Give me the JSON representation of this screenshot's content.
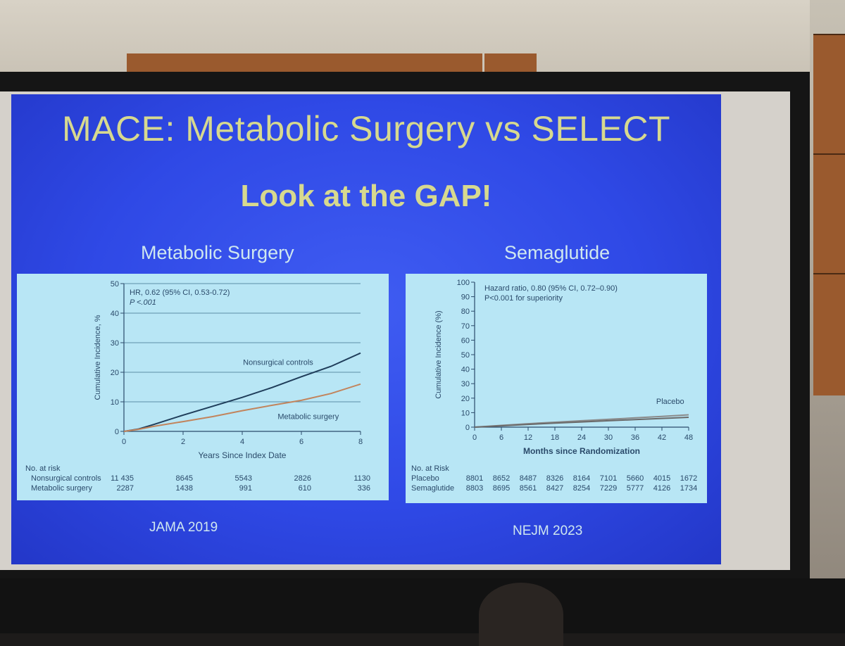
{
  "slide": {
    "title": "MACE: Metabolic Surgery vs SELECT",
    "subtitle": "Look at the GAP!",
    "left_panel_title": "Metabolic Surgery",
    "right_panel_title": "Semaglutide",
    "left_citation": "JAMA 2019",
    "right_citation": "NEJM 2023"
  },
  "chart_data": [
    {
      "type": "line",
      "ylabel": "Cumulative Incidence, %",
      "xlabel": "Years Since Index Date",
      "xlim": [
        0,
        8
      ],
      "ylim": [
        0,
        50
      ],
      "x_ticks": [
        0,
        2,
        4,
        6,
        8
      ],
      "y_ticks": [
        0,
        10,
        20,
        30,
        40,
        50
      ],
      "grid": true,
      "annotation_lines": [
        "HR, 0.62 (95% CI, 0.53-0.72)",
        "P <.001"
      ],
      "series": [
        {
          "name": "Nonsurgical controls",
          "color": "#1f3d5a",
          "x": [
            0,
            0.5,
            1,
            2,
            3,
            4,
            5,
            6,
            7,
            8
          ],
          "y": [
            0,
            0.8,
            2.3,
            5.5,
            8.5,
            11.5,
            14.8,
            18.5,
            22,
            26.5
          ]
        },
        {
          "name": "Metabolic surgery",
          "color": "#c2845c",
          "x": [
            0,
            0.5,
            1,
            2,
            3,
            4,
            5,
            6,
            7,
            8
          ],
          "y": [
            0,
            0.7,
            1.7,
            3.3,
            5,
            7,
            8.8,
            10.5,
            12.8,
            16
          ]
        }
      ],
      "risk_table": {
        "header": "No. at risk",
        "rows": [
          {
            "label": "Nonsurgical controls",
            "values": [
              "11 435",
              "8645",
              "5543",
              "2826",
              "1130"
            ]
          },
          {
            "label": "Metabolic surgery",
            "values": [
              "2287",
              "1438",
              "991",
              "610",
              "336"
            ]
          }
        ]
      }
    },
    {
      "type": "line",
      "ylabel": "Cumulative Incidence (%)",
      "xlabel": "Months since Randomization",
      "xlim": [
        0,
        48
      ],
      "ylim": [
        0,
        100
      ],
      "x_ticks": [
        0,
        6,
        12,
        18,
        24,
        30,
        36,
        42,
        48
      ],
      "y_ticks": [
        0,
        10,
        20,
        30,
        40,
        50,
        60,
        70,
        80,
        90,
        100
      ],
      "grid": false,
      "annotation_lines": [
        "Hazard ratio, 0.80 (95% CI, 0.72–0.90)",
        "P<0.001 for superiority"
      ],
      "series": [
        {
          "name": "Placebo",
          "color": "#8a8a8a",
          "x": [
            0,
            6,
            12,
            18,
            24,
            30,
            36,
            42,
            48
          ],
          "y": [
            0,
            1.2,
            2.4,
            3.4,
            4.4,
            5.4,
            6.4,
            7.4,
            8.5
          ]
        },
        {
          "name": "Semaglutide",
          "color": "#6a6a6a",
          "x": [
            0,
            6,
            12,
            18,
            24,
            30,
            36,
            42,
            48
          ],
          "y": [
            0,
            0.9,
            1.9,
            2.8,
            3.6,
            4.4,
            5.2,
            6.0,
            6.8
          ]
        }
      ],
      "series_labels_shown": [
        "Placebo"
      ],
      "risk_table": {
        "header": "No. at Risk",
        "rows": [
          {
            "label": "Placebo",
            "values": [
              "8801",
              "8652",
              "8487",
              "8326",
              "8164",
              "7101",
              "5660",
              "4015",
              "1672"
            ]
          },
          {
            "label": "Semaglutide",
            "values": [
              "8803",
              "8695",
              "8561",
              "8427",
              "8254",
              "7229",
              "5777",
              "4126",
              "1734"
            ]
          }
        ]
      }
    }
  ]
}
